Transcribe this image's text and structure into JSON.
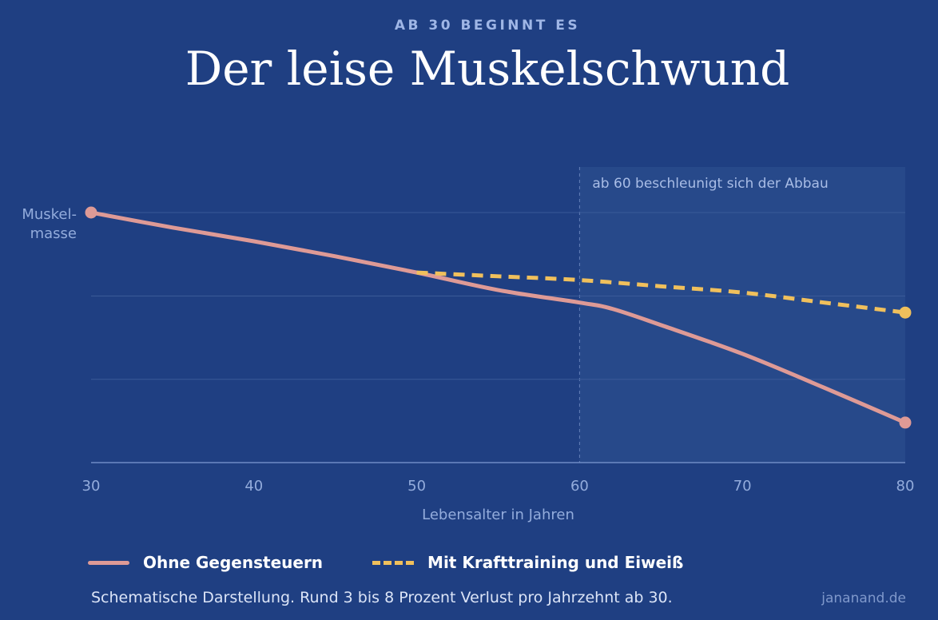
{
  "header": {
    "kicker": "AB 30 BEGINNT ES",
    "title": "Der leise Muskelschwund"
  },
  "chart_data": {
    "type": "line",
    "xlabel": "Lebensalter in Jahren",
    "ylabel": [
      "Muskel-",
      "masse"
    ],
    "xlim": [
      30,
      80
    ],
    "ylim": [
      0,
      100
    ],
    "x_ticks": [
      30,
      40,
      50,
      60,
      70,
      80
    ],
    "grid": true,
    "highlight_region": {
      "x_from": 60,
      "x_to": 80,
      "label": "ab 60 beschleunigt sich der Abbau"
    },
    "series": [
      {
        "name": "Ohne Gegensteuern",
        "style": "solid",
        "color": "#de9a96",
        "x": [
          30,
          35,
          40,
          45,
          50,
          55,
          60,
          62,
          65,
          70,
          75,
          80
        ],
        "y": [
          100,
          94,
          88.5,
          82.5,
          76,
          69,
          64,
          61.5,
          55,
          43.5,
          30,
          16
        ],
        "end_markers": true
      },
      {
        "name": "Mit Krafttraining und Eiweiß",
        "style": "dashed",
        "color": "#f0c05c",
        "x": [
          50,
          55,
          60,
          65,
          70,
          75,
          80
        ],
        "y": [
          76,
          74.5,
          73,
          70.5,
          68,
          64,
          60
        ],
        "end_markers": "end"
      }
    ]
  },
  "footnote": "Schematische Darstellung. Rund 3 bis 8 Prozent Verlust pro Jahrzehnt ab 30.",
  "credit": "jananand.de",
  "colors": {
    "background": "#1f3f82",
    "highlight": "#27498a",
    "axis_text": "#93acdc",
    "grid": "#3a5a98"
  }
}
